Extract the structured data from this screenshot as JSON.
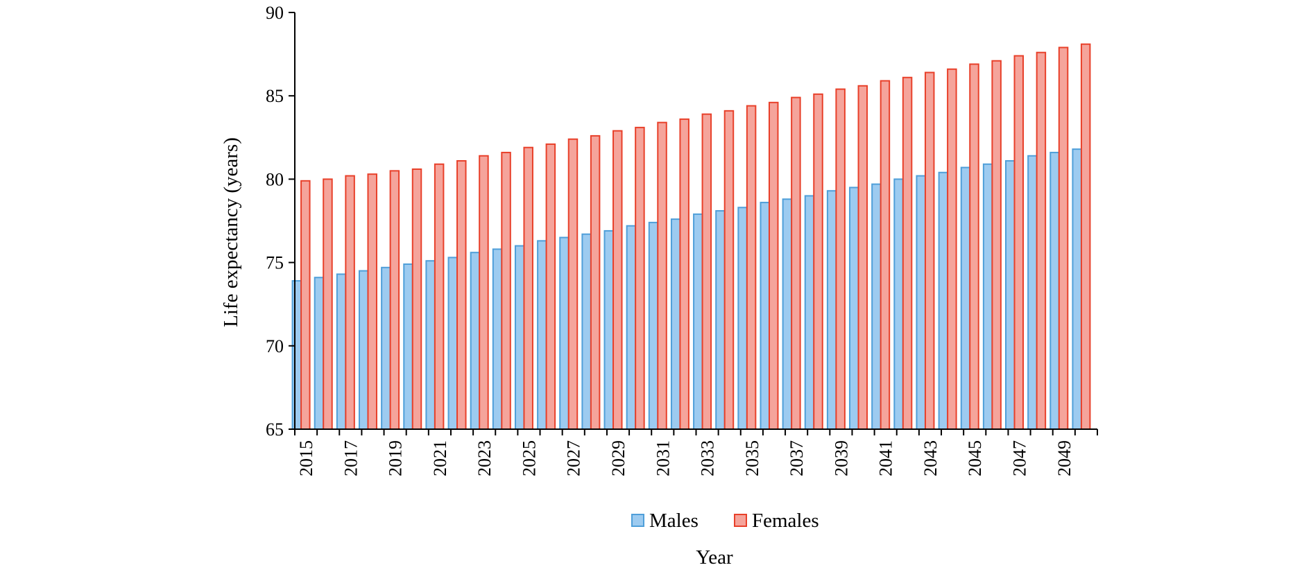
{
  "chart_data": {
    "type": "bar",
    "xlabel": "Year",
    "ylabel": "Life expectancy (years)",
    "ylim": [
      65,
      90
    ],
    "yticks": [
      65,
      70,
      75,
      80,
      85,
      90
    ],
    "categories": [
      2015,
      2016,
      2017,
      2018,
      2019,
      2020,
      2021,
      2022,
      2023,
      2024,
      2025,
      2026,
      2027,
      2028,
      2029,
      2030,
      2031,
      2032,
      2033,
      2034,
      2035,
      2036,
      2037,
      2038,
      2039,
      2040,
      2041,
      2042,
      2043,
      2044,
      2045,
      2046,
      2047,
      2048,
      2049,
      2050
    ],
    "xtick_labels": [
      "2015",
      "2017",
      "2019",
      "2021",
      "2023",
      "2025",
      "2027",
      "2029",
      "2031",
      "2033",
      "2035",
      "2037",
      "2039",
      "2041",
      "2043",
      "2045",
      "2047",
      "2049"
    ],
    "series": [
      {
        "name": "Males",
        "color": "#9dcbf0",
        "stroke": "#4f9fd9",
        "values": [
          73.9,
          74.1,
          74.3,
          74.5,
          74.7,
          74.9,
          75.1,
          75.3,
          75.6,
          75.8,
          76.0,
          76.3,
          76.5,
          76.7,
          76.9,
          77.2,
          77.4,
          77.6,
          77.9,
          78.1,
          78.3,
          78.6,
          78.8,
          79.0,
          79.3,
          79.5,
          79.7,
          80.0,
          80.2,
          80.4,
          80.7,
          80.9,
          81.1,
          81.4,
          81.6,
          81.8
        ]
      },
      {
        "name": "Females",
        "color": "#f5a49b",
        "stroke": "#e8402a",
        "values": [
          79.9,
          80.0,
          80.2,
          80.3,
          80.5,
          80.6,
          80.9,
          81.1,
          81.4,
          81.6,
          81.9,
          82.1,
          82.4,
          82.6,
          82.9,
          83.1,
          83.4,
          83.6,
          83.9,
          84.1,
          84.4,
          84.6,
          84.9,
          85.1,
          85.4,
          85.6,
          85.9,
          86.1,
          86.4,
          86.6,
          86.9,
          87.1,
          87.4,
          87.6,
          87.9,
          88.1
        ]
      }
    ],
    "legend": "bottom",
    "grid": false
  }
}
